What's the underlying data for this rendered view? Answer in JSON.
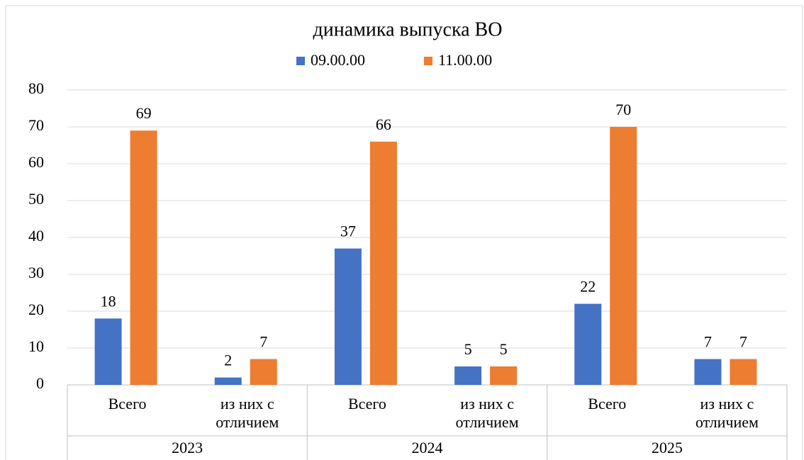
{
  "chart_data": {
    "type": "bar",
    "title": "динамика выпуска ВО",
    "categories": [
      "Всего",
      "из них с\nотличием",
      "Всего",
      "из них с\nотличием",
      "Всего",
      "из них с\nотличием"
    ],
    "groups": [
      "2023",
      "2024",
      "2025"
    ],
    "series": [
      {
        "name": "09.00.00",
        "color": "#4472c4",
        "values": [
          18,
          2,
          37,
          5,
          22,
          7
        ]
      },
      {
        "name": "11.00.00",
        "color": "#ed7d31",
        "values": [
          69,
          7,
          66,
          5,
          70,
          7
        ]
      }
    ],
    "ylim": [
      0,
      80
    ],
    "yticks": [
      0,
      10,
      20,
      30,
      40,
      50,
      60,
      70,
      80
    ],
    "grid": true,
    "legend": "top"
  }
}
